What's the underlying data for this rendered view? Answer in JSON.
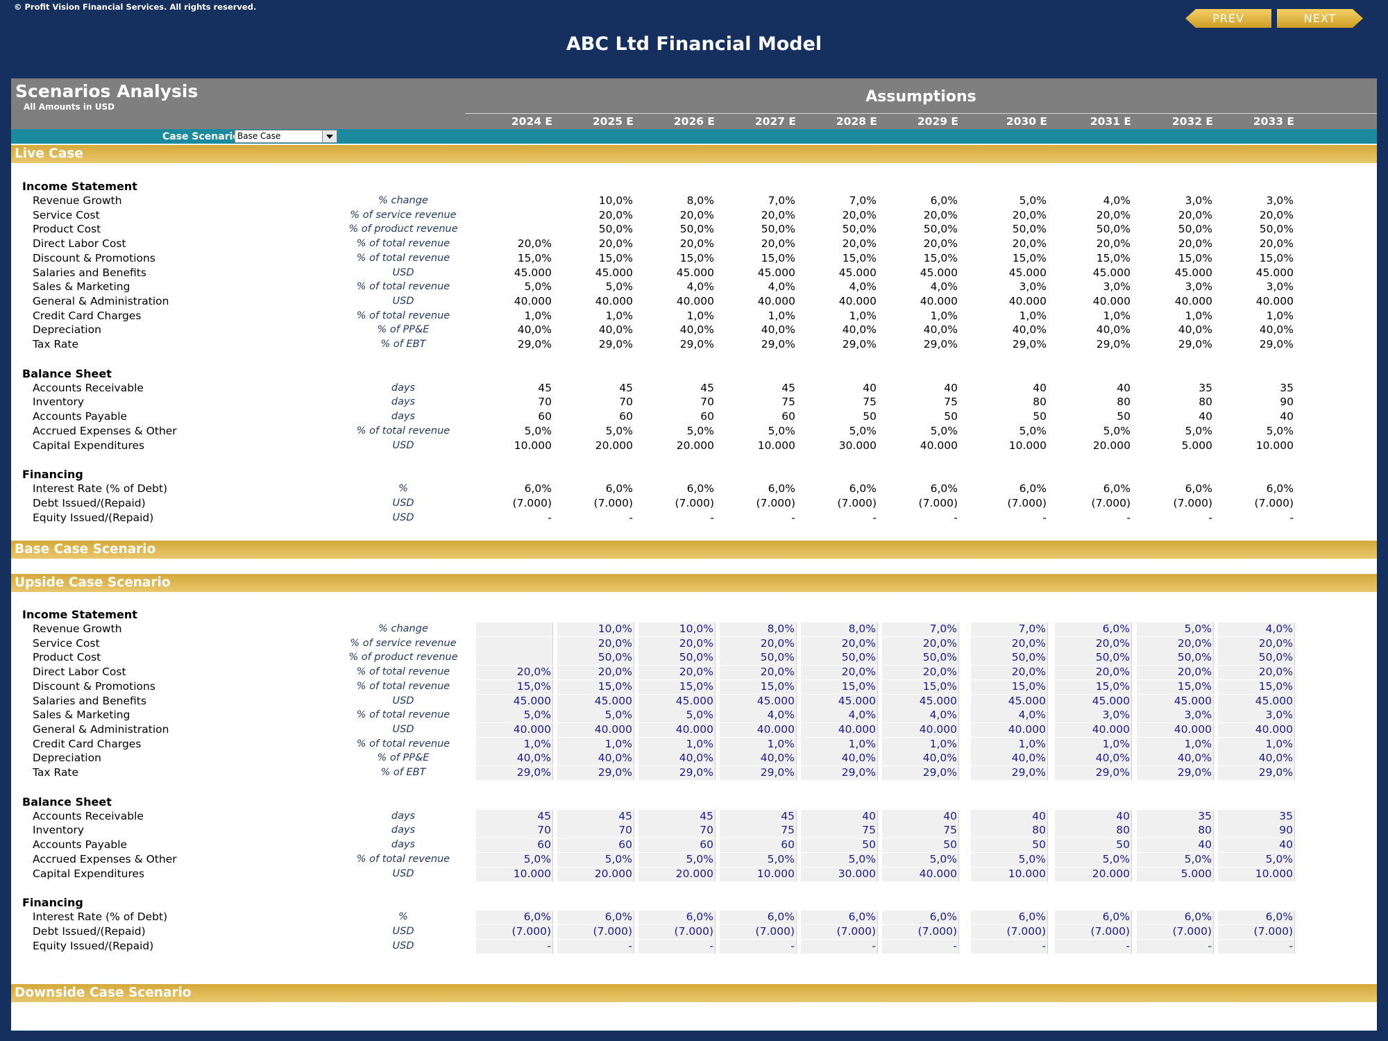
{
  "header": {
    "copyright": "© Profit Vision Financial Services. All rights reserved.",
    "prev_label": "PREV",
    "next_label": "NEXT",
    "title": "ABC Ltd Financial Model"
  },
  "sheet": {
    "title": "Scenarios Analysis",
    "subtitle": "All Amounts in  USD",
    "assumptions_label": "Assumptions",
    "years": [
      "2024 E",
      "2025 E",
      "2026 E",
      "2027 E",
      "2028 E",
      "2029 E",
      "2030 E",
      "2031 E",
      "2032 E",
      "2033 E"
    ],
    "case_scenario_label": "Case Scenario",
    "case_scenario_value": "Base Case"
  },
  "bands": {
    "live": "Live Case",
    "base": "Base Case Scenario",
    "upside": "Upside Case Scenario",
    "downside": "Downside Case Scenario"
  },
  "colors": {
    "background": "#15305f",
    "header_gray": "#7f7f7f",
    "teal": "#1b8a9c",
    "gold": "#d4a93a",
    "input_blue": "#1a1a8c"
  },
  "live_case": {
    "sections": [
      {
        "title": "Income Statement",
        "rows": [
          {
            "label": "Revenue Growth",
            "unit": "%  change",
            "values": [
              "",
              "10,0%",
              "8,0%",
              "7,0%",
              "7,0%",
              "6,0%",
              "5,0%",
              "4,0%",
              "3,0%",
              "3,0%"
            ]
          },
          {
            "label": "Service Cost",
            "unit": "% of service revenue",
            "values": [
              "",
              "20,0%",
              "20,0%",
              "20,0%",
              "20,0%",
              "20,0%",
              "20,0%",
              "20,0%",
              "20,0%",
              "20,0%"
            ]
          },
          {
            "label": "Product Cost",
            "unit": "% of product revenue",
            "values": [
              "",
              "50,0%",
              "50,0%",
              "50,0%",
              "50,0%",
              "50,0%",
              "50,0%",
              "50,0%",
              "50,0%",
              "50,0%"
            ]
          },
          {
            "label": "Direct Labor Cost",
            "unit": "% of total revenue",
            "values": [
              "20,0%",
              "20,0%",
              "20,0%",
              "20,0%",
              "20,0%",
              "20,0%",
              "20,0%",
              "20,0%",
              "20,0%",
              "20,0%"
            ]
          },
          {
            "label": "Discount & Promotions",
            "unit": "% of total revenue",
            "values": [
              "15,0%",
              "15,0%",
              "15,0%",
              "15,0%",
              "15,0%",
              "15,0%",
              "15,0%",
              "15,0%",
              "15,0%",
              "15,0%"
            ]
          },
          {
            "label": "Salaries and Benefits",
            "unit": "USD",
            "values": [
              "45.000",
              "45.000",
              "45.000",
              "45.000",
              "45.000",
              "45.000",
              "45.000",
              "45.000",
              "45.000",
              "45.000"
            ]
          },
          {
            "label": "Sales & Marketing",
            "unit": "% of total revenue",
            "values": [
              "5,0%",
              "5,0%",
              "4,0%",
              "4,0%",
              "4,0%",
              "4,0%",
              "3,0%",
              "3,0%",
              "3,0%",
              "3,0%"
            ]
          },
          {
            "label": "General & Administration",
            "unit": "USD",
            "values": [
              "40.000",
              "40.000",
              "40.000",
              "40.000",
              "40.000",
              "40.000",
              "40.000",
              "40.000",
              "40.000",
              "40.000"
            ]
          },
          {
            "label": "Credit Card Charges",
            "unit": "% of total revenue",
            "values": [
              "1,0%",
              "1,0%",
              "1,0%",
              "1,0%",
              "1,0%",
              "1,0%",
              "1,0%",
              "1,0%",
              "1,0%",
              "1,0%"
            ]
          },
          {
            "label": "Depreciation",
            "unit": "% of PP&E",
            "values": [
              "40,0%",
              "40,0%",
              "40,0%",
              "40,0%",
              "40,0%",
              "40,0%",
              "40,0%",
              "40,0%",
              "40,0%",
              "40,0%"
            ]
          },
          {
            "label": "Tax Rate",
            "unit": "% of EBT",
            "values": [
              "29,0%",
              "29,0%",
              "29,0%",
              "29,0%",
              "29,0%",
              "29,0%",
              "29,0%",
              "29,0%",
              "29,0%",
              "29,0%"
            ]
          }
        ]
      },
      {
        "title": "Balance Sheet",
        "rows": [
          {
            "label": "Accounts Receivable",
            "unit": "days",
            "values": [
              "45",
              "45",
              "45",
              "45",
              "40",
              "40",
              "40",
              "40",
              "35",
              "35"
            ]
          },
          {
            "label": "Inventory",
            "unit": "days",
            "values": [
              "70",
              "70",
              "70",
              "75",
              "75",
              "75",
              "80",
              "80",
              "80",
              "90"
            ]
          },
          {
            "label": "Accounts Payable",
            "unit": "days",
            "values": [
              "60",
              "60",
              "60",
              "60",
              "50",
              "50",
              "50",
              "50",
              "40",
              "40"
            ]
          },
          {
            "label": "Accrued Expenses & Other",
            "unit": "% of total revenue",
            "values": [
              "5,0%",
              "5,0%",
              "5,0%",
              "5,0%",
              "5,0%",
              "5,0%",
              "5,0%",
              "5,0%",
              "5,0%",
              "5,0%"
            ]
          },
          {
            "label": "Capital Expenditures",
            "unit": "USD",
            "values": [
              "10.000",
              "20.000",
              "20.000",
              "10.000",
              "30.000",
              "40.000",
              "10.000",
              "20.000",
              "5.000",
              "10.000"
            ]
          }
        ]
      },
      {
        "title": "Financing",
        "rows": [
          {
            "label": "Interest Rate (% of Debt)",
            "unit": "%",
            "values": [
              "6,0%",
              "6,0%",
              "6,0%",
              "6,0%",
              "6,0%",
              "6,0%",
              "6,0%",
              "6,0%",
              "6,0%",
              "6,0%"
            ]
          },
          {
            "label": "Debt Issued/(Repaid)",
            "unit": "USD",
            "values": [
              "(7.000)",
              "(7.000)",
              "(7.000)",
              "(7.000)",
              "(7.000)",
              "(7.000)",
              "(7.000)",
              "(7.000)",
              "(7.000)",
              "(7.000)"
            ]
          },
          {
            "label": "Equity Issued/(Repaid)",
            "unit": "USD",
            "values": [
              "-",
              "-",
              "-",
              "-",
              "-",
              "-",
              "-",
              "-",
              "-",
              "-"
            ]
          }
        ]
      }
    ]
  },
  "upside_case": {
    "sections": [
      {
        "title": "Income Statement",
        "rows": [
          {
            "label": "Revenue Growth",
            "unit": "%  change",
            "values": [
              "",
              "10,0%",
              "10,0%",
              "8,0%",
              "8,0%",
              "7,0%",
              "7,0%",
              "6,0%",
              "5,0%",
              "4,0%"
            ]
          },
          {
            "label": "Service Cost",
            "unit": "% of service revenue",
            "values": [
              "",
              "20,0%",
              "20,0%",
              "20,0%",
              "20,0%",
              "20,0%",
              "20,0%",
              "20,0%",
              "20,0%",
              "20,0%"
            ]
          },
          {
            "label": "Product Cost",
            "unit": "% of product revenue",
            "values": [
              "",
              "50,0%",
              "50,0%",
              "50,0%",
              "50,0%",
              "50,0%",
              "50,0%",
              "50,0%",
              "50,0%",
              "50,0%"
            ]
          },
          {
            "label": "Direct Labor Cost",
            "unit": "% of total revenue",
            "values": [
              "20,0%",
              "20,0%",
              "20,0%",
              "20,0%",
              "20,0%",
              "20,0%",
              "20,0%",
              "20,0%",
              "20,0%",
              "20,0%"
            ]
          },
          {
            "label": "Discount & Promotions",
            "unit": "% of total revenue",
            "values": [
              "15,0%",
              "15,0%",
              "15,0%",
              "15,0%",
              "15,0%",
              "15,0%",
              "15,0%",
              "15,0%",
              "15,0%",
              "15,0%"
            ]
          },
          {
            "label": "Salaries and Benefits",
            "unit": "USD",
            "values": [
              "45.000",
              "45.000",
              "45.000",
              "45.000",
              "45.000",
              "45.000",
              "45.000",
              "45.000",
              "45.000",
              "45.000"
            ]
          },
          {
            "label": "Sales & Marketing",
            "unit": "% of total revenue",
            "values": [
              "5,0%",
              "5,0%",
              "5,0%",
              "4,0%",
              "4,0%",
              "4,0%",
              "4,0%",
              "3,0%",
              "3,0%",
              "3,0%"
            ]
          },
          {
            "label": "General & Administration",
            "unit": "USD",
            "values": [
              "40.000",
              "40.000",
              "40.000",
              "40.000",
              "40.000",
              "40.000",
              "40.000",
              "40.000",
              "40.000",
              "40.000"
            ]
          },
          {
            "label": "Credit Card Charges",
            "unit": "% of total revenue",
            "values": [
              "1,0%",
              "1,0%",
              "1,0%",
              "1,0%",
              "1,0%",
              "1,0%",
              "1,0%",
              "1,0%",
              "1,0%",
              "1,0%"
            ]
          },
          {
            "label": "Depreciation",
            "unit": "% of PP&E",
            "values": [
              "40,0%",
              "40,0%",
              "40,0%",
              "40,0%",
              "40,0%",
              "40,0%",
              "40,0%",
              "40,0%",
              "40,0%",
              "40,0%"
            ]
          },
          {
            "label": "Tax Rate",
            "unit": "% of EBT",
            "values": [
              "29,0%",
              "29,0%",
              "29,0%",
              "29,0%",
              "29,0%",
              "29,0%",
              "29,0%",
              "29,0%",
              "29,0%",
              "29,0%"
            ]
          }
        ]
      },
      {
        "title": "Balance Sheet",
        "rows": [
          {
            "label": "Accounts Receivable",
            "unit": "days",
            "values": [
              "45",
              "45",
              "45",
              "45",
              "40",
              "40",
              "40",
              "40",
              "35",
              "35"
            ]
          },
          {
            "label": "Inventory",
            "unit": "days",
            "values": [
              "70",
              "70",
              "70",
              "75",
              "75",
              "75",
              "80",
              "80",
              "80",
              "90"
            ]
          },
          {
            "label": "Accounts Payable",
            "unit": "days",
            "values": [
              "60",
              "60",
              "60",
              "60",
              "50",
              "50",
              "50",
              "50",
              "40",
              "40"
            ]
          },
          {
            "label": "Accrued Expenses & Other",
            "unit": "% of total revenue",
            "values": [
              "5,0%",
              "5,0%",
              "5,0%",
              "5,0%",
              "5,0%",
              "5,0%",
              "5,0%",
              "5,0%",
              "5,0%",
              "5,0%"
            ]
          },
          {
            "label": "Capital Expenditures",
            "unit": "USD",
            "values": [
              "10.000",
              "20.000",
              "20.000",
              "10.000",
              "30.000",
              "40.000",
              "10.000",
              "20.000",
              "5.000",
              "10.000"
            ]
          }
        ]
      },
      {
        "title": "Financing",
        "rows": [
          {
            "label": "Interest Rate (% of Debt)",
            "unit": "%",
            "values": [
              "6,0%",
              "6,0%",
              "6,0%",
              "6,0%",
              "6,0%",
              "6,0%",
              "6,0%",
              "6,0%",
              "6,0%",
              "6,0%"
            ]
          },
          {
            "label": "Debt Issued/(Repaid)",
            "unit": "USD",
            "values": [
              "(7.000)",
              "(7.000)",
              "(7.000)",
              "(7.000)",
              "(7.000)",
              "(7.000)",
              "(7.000)",
              "(7.000)",
              "(7.000)",
              "(7.000)"
            ]
          },
          {
            "label": "Equity Issued/(Repaid)",
            "unit": "USD",
            "values": [
              "-",
              "-",
              "-",
              "-",
              "-",
              "-",
              "-",
              "-",
              "-",
              "-"
            ]
          }
        ]
      }
    ]
  }
}
